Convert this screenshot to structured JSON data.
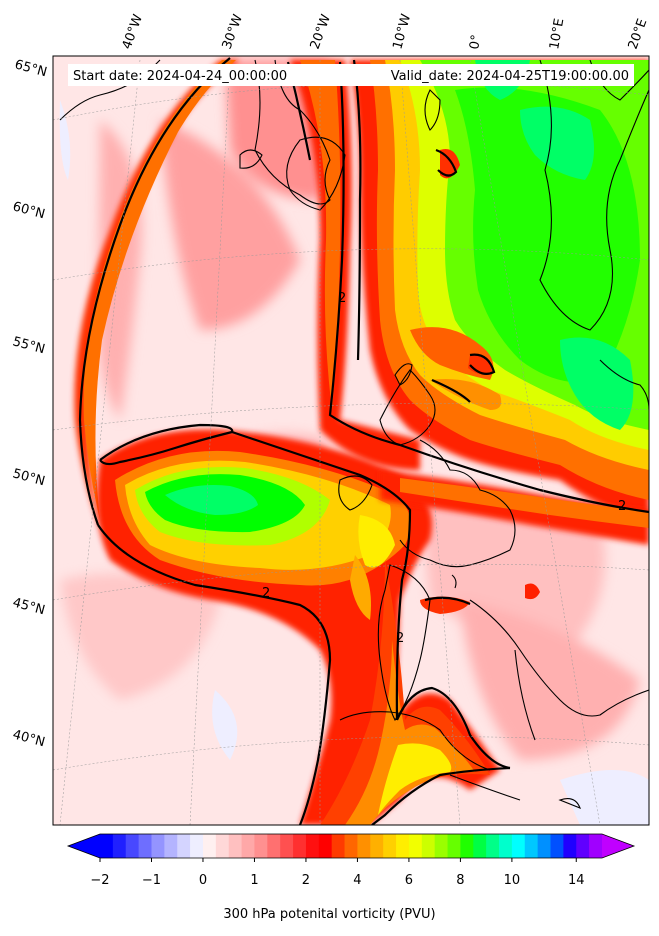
{
  "header": {
    "start": "Start date: 2024-04-24_00:00:00",
    "valid": "Valid_date: 2024-04-25T19:00:00.00"
  },
  "lon_labels": [
    "40°W",
    "30°W",
    "20°W",
    "10°W",
    "0°",
    "10°E",
    "20°E"
  ],
  "lat_labels": [
    "65°N",
    "60°N",
    "55°N",
    "50°N",
    "45°N",
    "40°N"
  ],
  "contour_label": "2",
  "colorbar": {
    "label": "300 hPa potenital vorticity (PVU)",
    "ticks": [
      "−2",
      "−1",
      "0",
      "1",
      "2",
      "4",
      "6",
      "8",
      "10",
      "14"
    ],
    "colors": [
      "#0000ff",
      "#2020ff",
      "#4848ff",
      "#6e6eff",
      "#9494ff",
      "#b4b4ff",
      "#d4d4ff",
      "#eeeeff",
      "#fff0f0",
      "#ffd8d8",
      "#ffc0c0",
      "#ffa8a8",
      "#ff9090",
      "#ff7070",
      "#ff5050",
      "#ff3030",
      "#ff1010",
      "#ff0000",
      "#ff3a00",
      "#ff6600",
      "#ff9000",
      "#ffb000",
      "#ffd000",
      "#ffee00",
      "#f2ff00",
      "#ccff00",
      "#9aff00",
      "#66ff00",
      "#20ff00",
      "#00ff44",
      "#00ff88",
      "#00ffcc",
      "#00ffff",
      "#00c8ff",
      "#0090ff",
      "#0050ff",
      "#2000ff",
      "#6000ff",
      "#a000ff"
    ],
    "extend_low": "#0000ff",
    "extend_high": "#c000ff"
  }
}
